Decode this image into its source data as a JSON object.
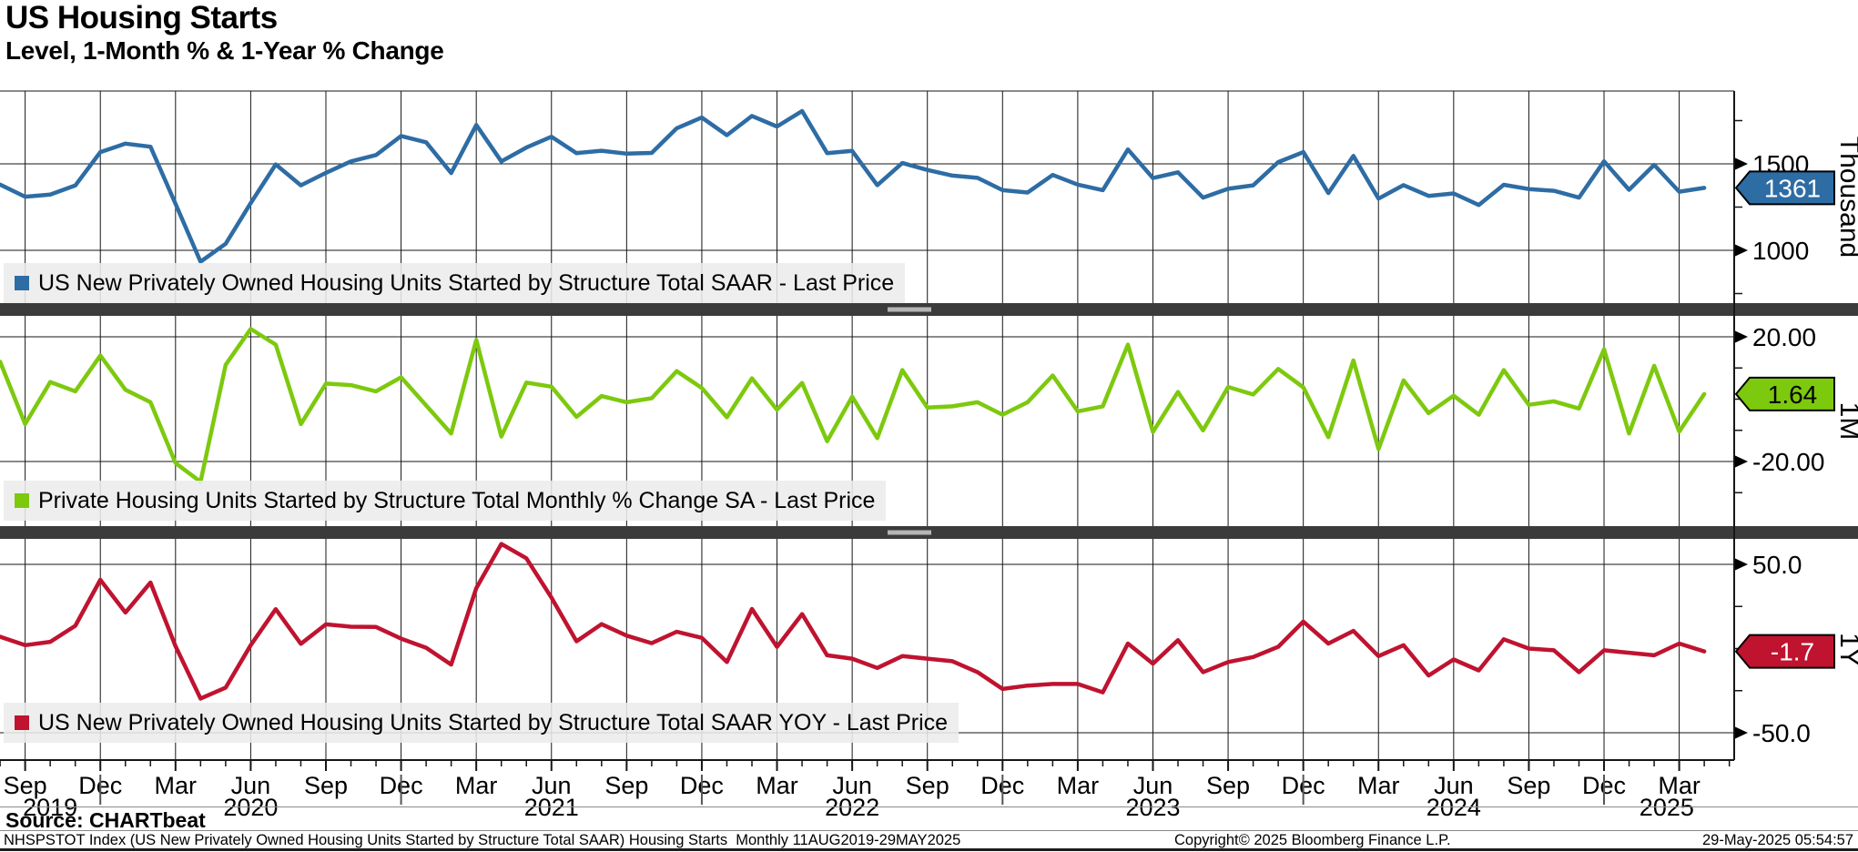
{
  "header": {
    "title": "US Housing Starts",
    "subtitle": "Level, 1-Month % & 1-Year % Change"
  },
  "footer": {
    "source": "Source: CHARTbeat",
    "description": "NHSPSTOT Index (US New Privately Owned Housing Units Started by Structure Total SAAR) Housing Starts  Monthly 11AUG2019-29MAY2025",
    "copyright": "Copyright© 2025 Bloomberg Finance L.P.",
    "timestamp": "29-May-2025 05:54:57"
  },
  "chart_data": {
    "type": "line",
    "title": "US Housing Starts",
    "subtitle": "Level, 1-Month % & 1-Year % Change",
    "frequency": "monthly",
    "x_start": "2019-08",
    "x_end": "2025-04",
    "x": [
      "2019-08",
      "2019-09",
      "2019-10",
      "2019-11",
      "2019-12",
      "2020-01",
      "2020-02",
      "2020-03",
      "2020-04",
      "2020-05",
      "2020-06",
      "2020-07",
      "2020-08",
      "2020-09",
      "2020-10",
      "2020-11",
      "2020-12",
      "2021-01",
      "2021-02",
      "2021-03",
      "2021-04",
      "2021-05",
      "2021-06",
      "2021-07",
      "2021-08",
      "2021-09",
      "2021-10",
      "2021-11",
      "2021-12",
      "2022-01",
      "2022-02",
      "2022-03",
      "2022-04",
      "2022-05",
      "2022-06",
      "2022-07",
      "2022-08",
      "2022-09",
      "2022-10",
      "2022-11",
      "2022-12",
      "2023-01",
      "2023-02",
      "2023-03",
      "2023-04",
      "2023-05",
      "2023-06",
      "2023-07",
      "2023-08",
      "2023-09",
      "2023-10",
      "2023-11",
      "2023-12",
      "2024-01",
      "2024-02",
      "2024-03",
      "2024-04",
      "2024-05",
      "2024-06",
      "2024-07",
      "2024-08",
      "2024-09",
      "2024-10",
      "2024-11",
      "2024-12",
      "2025-01",
      "2025-02",
      "2025-03",
      "2025-04"
    ],
    "x_ticks": [
      {
        "label": "Sep",
        "m": 1
      },
      {
        "label": "Dec",
        "m": 4
      },
      {
        "label": "Mar",
        "m": 7
      },
      {
        "label": "Jun",
        "m": 10
      },
      {
        "label": "Sep",
        "m": 13
      },
      {
        "label": "Dec",
        "m": 16
      },
      {
        "label": "Mar",
        "m": 19
      },
      {
        "label": "Jun",
        "m": 22
      },
      {
        "label": "Sep",
        "m": 25
      },
      {
        "label": "Dec",
        "m": 28
      },
      {
        "label": "Mar",
        "m": 31
      },
      {
        "label": "Jun",
        "m": 34
      },
      {
        "label": "Sep",
        "m": 37
      },
      {
        "label": "Dec",
        "m": 40
      },
      {
        "label": "Mar",
        "m": 43
      },
      {
        "label": "Jun",
        "m": 46
      },
      {
        "label": "Sep",
        "m": 49
      },
      {
        "label": "Dec",
        "m": 52
      },
      {
        "label": "Mar",
        "m": 55
      },
      {
        "label": "Jun",
        "m": 58
      },
      {
        "label": "Sep",
        "m": 61
      },
      {
        "label": "Dec",
        "m": 64
      },
      {
        "label": "Mar",
        "m": 67
      }
    ],
    "year_labels": [
      {
        "label": "2019",
        "m": 2
      },
      {
        "label": "2020",
        "m": 10
      },
      {
        "label": "2021",
        "m": 22
      },
      {
        "label": "2022",
        "m": 34
      },
      {
        "label": "2023",
        "m": 46
      },
      {
        "label": "2024",
        "m": 58
      },
      {
        "label": "2025",
        "m": 66.5
      }
    ],
    "year_separators_m": [
      4,
      16,
      28,
      40,
      52,
      64
    ],
    "panels": [
      {
        "id": "level",
        "legend": "US New Privately Owned Housing Units Started by Structure Total SAAR - Last Price",
        "axis_label": "Thousand",
        "color": "#2E6CA4",
        "ticks": [
          {
            "label": "1500",
            "value": 1500
          },
          {
            "label": "1000",
            "value": 1000
          }
        ],
        "minor_ticks": [
          1750,
          1250,
          750
        ],
        "badge": {
          "label": "1361",
          "value": 1361,
          "text_color": "#ffffff"
        },
        "values": [
          1380,
          1310,
          1322,
          1375,
          1568,
          1617,
          1599,
          1269,
          934,
          1038,
          1273,
          1497,
          1376,
          1448,
          1514,
          1551,
          1661,
          1625,
          1447,
          1725,
          1514,
          1594,
          1657,
          1562,
          1576,
          1559,
          1563,
          1706,
          1768,
          1666,
          1777,
          1716,
          1805,
          1562,
          1575,
          1377,
          1505,
          1465,
          1432,
          1419,
          1348,
          1334,
          1436,
          1380,
          1348,
          1583,
          1418,
          1451,
          1305,
          1356,
          1376,
          1510,
          1568,
          1331,
          1546,
          1299,
          1377,
          1315,
          1329,
          1262,
          1379,
          1354,
          1344,
          1305,
          1515,
          1350,
          1494,
          1339,
          1361
        ]
      },
      {
        "id": "mom",
        "legend": "Private Housing Units Started by Structure Total Monthly % Change SA - Last Price",
        "axis_label": "1M",
        "color": "#7DC90E",
        "ticks": [
          {
            "label": "20.00",
            "value": 20
          },
          {
            "label": "-20.00",
            "value": -20
          }
        ],
        "minor_ticks": [
          10,
          0,
          -10,
          -30
        ],
        "badge": {
          "label": "1.64",
          "value": 1.64,
          "text_color": "#000000"
        },
        "values": [
          12,
          -8,
          5.5,
          2.5,
          14,
          3,
          -1,
          -20.5,
          -26.5,
          11,
          22.5,
          17.5,
          -8,
          5,
          4.5,
          2.5,
          7,
          -2,
          -11,
          19,
          -12,
          5.3,
          4,
          -5.7,
          1,
          -1,
          0.3,
          9,
          3.6,
          -5.8,
          6.7,
          -3.4,
          5.2,
          -13.5,
          0.8,
          -12.5,
          9.3,
          -2.7,
          -2.3,
          -1,
          -5,
          -1,
          7.6,
          -3.9,
          -2.3,
          17.5,
          -10.5,
          2.3,
          -10,
          3.9,
          1.5,
          9.7,
          3.8,
          -12.2,
          12.4,
          -16,
          6,
          -4.5,
          1.1,
          -5,
          9.3,
          -1.8,
          -0.7,
          -3,
          16,
          -11,
          10.7,
          -10.4,
          1.64
        ]
      },
      {
        "id": "yoy",
        "legend": "US New Privately Owned Housing Units Started by Structure Total SAAR YOY - Last Price",
        "axis_label": "1Y",
        "color": "#BF1330",
        "ticks": [
          {
            "label": "50.0",
            "value": 50
          },
          {
            "label": "-50.0",
            "value": -50
          }
        ],
        "minor_ticks": [
          25,
          0,
          -25
        ],
        "badge": {
          "label": "-1.7",
          "value": -1.7,
          "text_color": "#ffffff"
        },
        "values": [
          7,
          2,
          4,
          13.5,
          40.8,
          21.4,
          39.2,
          1.4,
          -29.7,
          -23.2,
          2,
          23.4,
          2.8,
          14.4,
          13,
          12.8,
          5.9,
          0.5,
          -9.5,
          35.9,
          62.1,
          53.6,
          30.2,
          4.3,
          14.5,
          7.7,
          3.2,
          10,
          6.4,
          -8,
          23.5,
          1,
          20.5,
          -4,
          -6,
          -11.5,
          -4.5,
          -6,
          -7.5,
          -14,
          -24,
          -22,
          -21,
          -21,
          -26,
          3,
          -9,
          5,
          -14,
          -8,
          -5,
          1,
          16,
          3,
          10.5,
          -4.5,
          2,
          -16,
          -6.5,
          -13,
          5.5,
          0,
          -1,
          -14,
          -1,
          -2.5,
          -4,
          3,
          -1.7
        ]
      }
    ]
  }
}
